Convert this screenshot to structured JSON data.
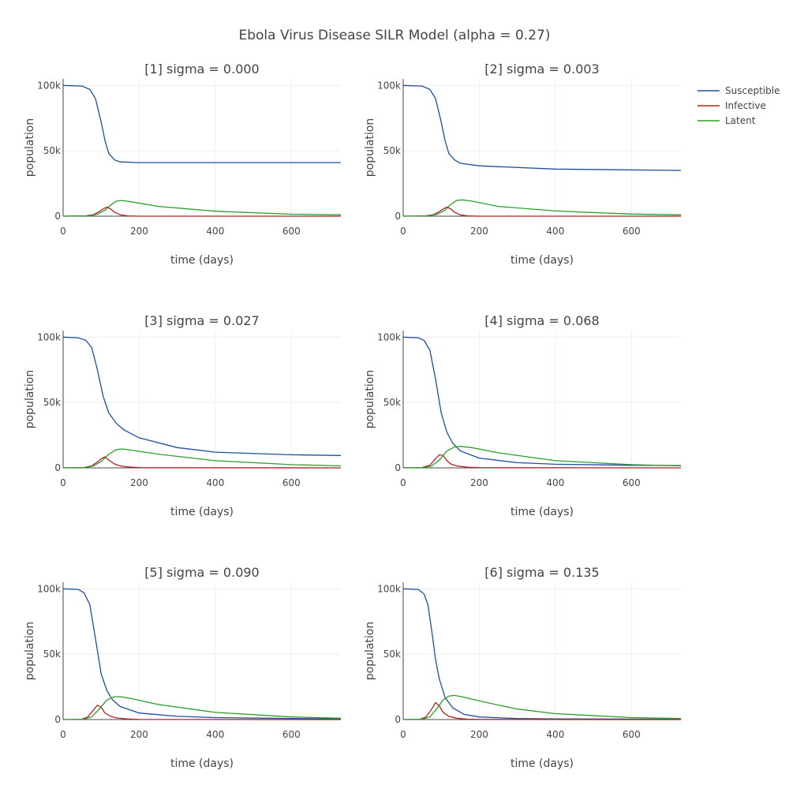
{
  "chart_data": {
    "type": "line",
    "title": "Ebola Virus Disease SILR Model (alpha = 0.27)",
    "xlabel": "time (days)",
    "ylabel": "population",
    "xlim": [
      0,
      730
    ],
    "ylim": [
      0,
      105000
    ],
    "x_ticks": [
      0,
      200,
      400,
      600
    ],
    "x_tick_labels": [
      "0",
      "200",
      "400",
      "600"
    ],
    "y_ticks": [
      0,
      50000,
      100000
    ],
    "y_tick_labels": [
      "0",
      "50k",
      "100k"
    ],
    "grid": true,
    "legend": {
      "placement": "top-right",
      "entries": [
        {
          "name": "Susceptible",
          "color": "#1f4e9c"
        },
        {
          "name": "Infective",
          "color": "#b22222"
        },
        {
          "name": "Latent",
          "color": "#2a9d2a"
        }
      ]
    },
    "series_colors": {
      "Susceptible": "#1f4e9c",
      "Infective": "#b22222",
      "Latent": "#2a9d2a"
    },
    "panels": [
      {
        "title": "[1] sigma = 0.000",
        "series": [
          {
            "name": "Susceptible",
            "x": [
              0,
              50,
              70,
              85,
              100,
              110,
              120,
              135,
              150,
              200,
              400,
              730
            ],
            "y": [
              100000,
              99500,
              97000,
              90000,
              72000,
              58000,
              48000,
              43000,
              41500,
              41000,
              41000,
              41000
            ]
          },
          {
            "name": "Infective",
            "x": [
              0,
              60,
              80,
              95,
              105,
              115,
              125,
              135,
              150,
              170,
              200,
              730
            ],
            "y": [
              0,
              300,
              1200,
              3500,
              5500,
              7000,
              5500,
              3000,
              1000,
              200,
              0,
              0
            ]
          },
          {
            "name": "Latent",
            "x": [
              0,
              70,
              90,
              110,
              125,
              140,
              155,
              180,
              250,
              400,
              600,
              730
            ],
            "y": [
              0,
              300,
              1500,
              4500,
              8500,
              11500,
              12000,
              11000,
              7500,
              3800,
              1500,
              1000
            ]
          }
        ]
      },
      {
        "title": "[2] sigma = 0.003",
        "series": [
          {
            "name": "Susceptible",
            "x": [
              0,
              50,
              70,
              85,
              100,
              110,
              120,
              135,
              150,
              200,
              400,
              730
            ],
            "y": [
              100000,
              99500,
              97000,
              90000,
              72000,
              58000,
              48000,
              43000,
              40500,
              38500,
              36000,
              35000
            ]
          },
          {
            "name": "Infective",
            "x": [
              0,
              60,
              80,
              95,
              105,
              115,
              125,
              135,
              150,
              170,
              200,
              730
            ],
            "y": [
              0,
              300,
              1200,
              3500,
              5500,
              7000,
              5500,
              3000,
              1000,
              200,
              0,
              0
            ]
          },
          {
            "name": "Latent",
            "x": [
              0,
              70,
              90,
              110,
              125,
              140,
              155,
              180,
              250,
              400,
              600,
              730
            ],
            "y": [
              0,
              300,
              1500,
              4500,
              9000,
              12000,
              12500,
              11500,
              7500,
              4000,
              1600,
              1000
            ]
          }
        ]
      },
      {
        "title": "[3] sigma = 0.027",
        "series": [
          {
            "name": "Susceptible",
            "x": [
              0,
              40,
              60,
              75,
              90,
              105,
              120,
              140,
              160,
              200,
              300,
              400,
              600,
              730
            ],
            "y": [
              100000,
              99500,
              97500,
              92000,
              75000,
              55000,
              42000,
              34000,
              29000,
              23000,
              15500,
              12000,
              10000,
              9500
            ]
          },
          {
            "name": "Infective",
            "x": [
              0,
              55,
              75,
              90,
              100,
              110,
              120,
              135,
              150,
              170,
              200,
              730
            ],
            "y": [
              0,
              300,
              1500,
              4500,
              7000,
              8500,
              6000,
              3000,
              1500,
              700,
              200,
              0
            ]
          },
          {
            "name": "Latent",
            "x": [
              0,
              60,
              80,
              100,
              120,
              140,
              155,
              180,
              250,
              400,
              600,
              730
            ],
            "y": [
              0,
              300,
              1500,
              5000,
              10500,
              14000,
              14500,
              13500,
              10500,
              5500,
              2500,
              1500
            ]
          }
        ]
      },
      {
        "title": "[4] sigma = 0.068",
        "series": [
          {
            "name": "Susceptible",
            "x": [
              0,
              40,
              55,
              70,
              85,
              100,
              115,
              130,
              150,
              200,
              300,
              400,
              600,
              730
            ],
            "y": [
              100000,
              99500,
              97500,
              90000,
              68000,
              42000,
              27000,
              19000,
              13000,
              7500,
              4000,
              2800,
              2000,
              1800
            ]
          },
          {
            "name": "Infective",
            "x": [
              0,
              50,
              70,
              85,
              95,
              105,
              115,
              125,
              140,
              170,
              200,
              730
            ],
            "y": [
              0,
              300,
              2000,
              7000,
              10000,
              9500,
              5500,
              3000,
              1500,
              500,
              200,
              0
            ]
          },
          {
            "name": "Latent",
            "x": [
              0,
              55,
              75,
              95,
              115,
              135,
              150,
              180,
              250,
              400,
              600,
              730
            ],
            "y": [
              0,
              300,
              1500,
              6000,
              13000,
              16000,
              16500,
              15500,
              11500,
              5500,
              2500,
              1500
            ]
          }
        ]
      },
      {
        "title": "[5] sigma = 0.090",
        "series": [
          {
            "name": "Susceptible",
            "x": [
              0,
              40,
              55,
              70,
              85,
              100,
              115,
              130,
              150,
              200,
              300,
              400,
              600,
              730
            ],
            "y": [
              100000,
              99500,
              97000,
              88000,
              62000,
              35000,
              22000,
              15000,
              10000,
              5000,
              2500,
              1500,
              800,
              600
            ]
          },
          {
            "name": "Infective",
            "x": [
              0,
              50,
              65,
              80,
              90,
              100,
              110,
              125,
              140,
              170,
              200,
              730
            ],
            "y": [
              0,
              300,
              2000,
              7500,
              11000,
              9500,
              5000,
              2500,
              1200,
              400,
              100,
              0
            ]
          },
          {
            "name": "Latent",
            "x": [
              0,
              55,
              75,
              95,
              115,
              135,
              150,
              180,
              250,
              400,
              600,
              730
            ],
            "y": [
              0,
              300,
              2000,
              8000,
              15000,
              17500,
              17500,
              16000,
              11500,
              5500,
              2000,
              1000
            ]
          }
        ]
      },
      {
        "title": "[6] sigma = 0.135",
        "series": [
          {
            "name": "Susceptible",
            "x": [
              0,
              40,
              55,
              65,
              75,
              85,
              95,
              110,
              130,
              160,
              200,
              300,
              400,
              730
            ],
            "y": [
              100000,
              99500,
              96000,
              88000,
              68000,
              46000,
              31000,
              17000,
              9000,
              4000,
              2000,
              800,
              500,
              300
            ]
          },
          {
            "name": "Infective",
            "x": [
              0,
              45,
              60,
              75,
              85,
              95,
              105,
              120,
              140,
              170,
              200,
              730
            ],
            "y": [
              0,
              300,
              2000,
              8000,
              13000,
              10500,
              5500,
              2500,
              1000,
              300,
              100,
              0
            ]
          },
          {
            "name": "Latent",
            "x": [
              0,
              50,
              70,
              90,
              105,
              120,
              135,
              160,
              220,
              300,
              400,
              600,
              730
            ],
            "y": [
              0,
              300,
              2000,
              9000,
              15000,
              18000,
              18500,
              17000,
              13000,
              8000,
              4500,
              1500,
              800
            ]
          }
        ]
      }
    ]
  }
}
